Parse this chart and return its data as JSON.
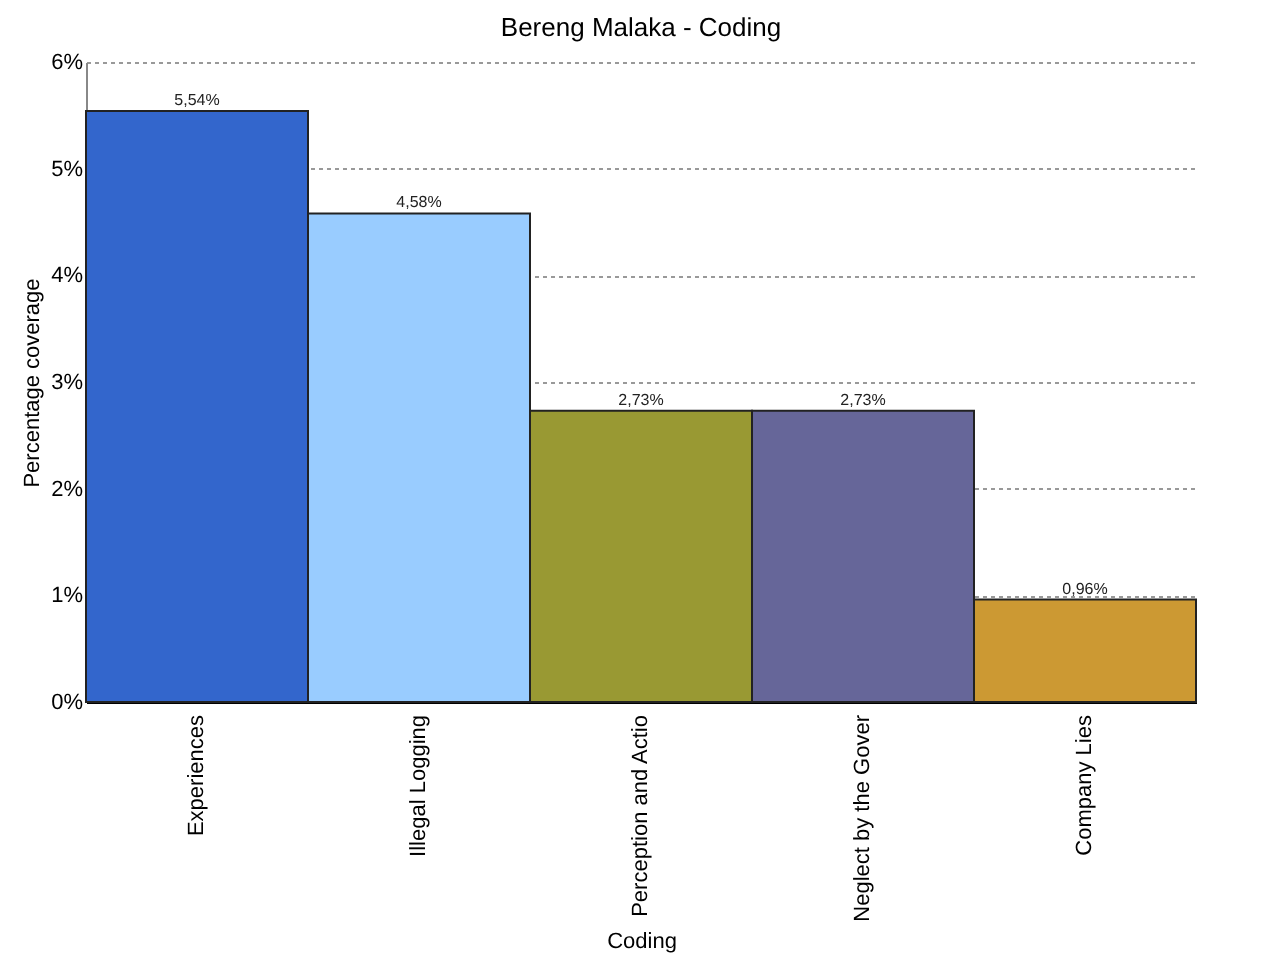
{
  "chart_data": {
    "type": "bar",
    "title": "Bereng Malaka - Coding",
    "xlabel": "Coding",
    "ylabel": "Percentage coverage",
    "categories": [
      "Experiences",
      "Illegal Logging",
      "Perception and Actio",
      "Neglect by the Gover",
      "Company Lies"
    ],
    "values": [
      5.54,
      4.58,
      2.73,
      2.73,
      0.96
    ],
    "colors": [
      "#3366cc",
      "#99ccff",
      "#999933",
      "#666699",
      "#cc9933"
    ],
    "value_labels": [
      "5,54%",
      "4,58%",
      "2,73%",
      "2,73%",
      "0,96%"
    ],
    "ylim": [
      0,
      6
    ],
    "yticks": [
      {
        "value": 0,
        "label": "0%"
      },
      {
        "value": 1,
        "label": "1%"
      },
      {
        "value": 2,
        "label": "2%"
      },
      {
        "value": 3,
        "label": "3%"
      },
      {
        "value": 4,
        "label": "4%"
      },
      {
        "value": 5,
        "label": "5%"
      },
      {
        "value": 6,
        "label": "6%"
      }
    ],
    "grid": "y",
    "legend": false
  }
}
